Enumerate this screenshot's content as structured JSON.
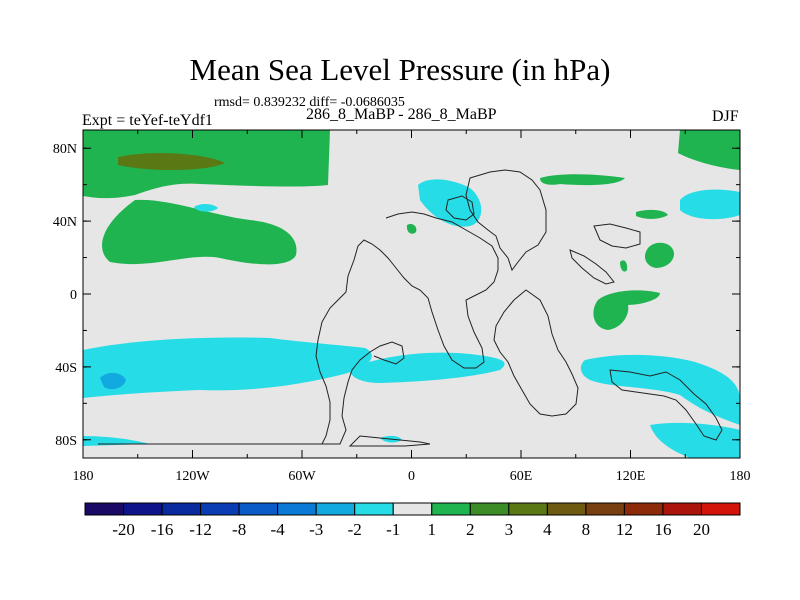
{
  "title": "Mean Sea Level Pressure (in hPa)",
  "stats": "rmsd= 0.839232 diff= -0.0686035",
  "left_label": "Expt = teYef-teYdf1",
  "center_label": "286_8_MaBP - 286_8_MaBP",
  "season": "DJF",
  "lat_ticks": [
    {
      "label": "80N",
      "lat": 80
    },
    {
      "label": "40N",
      "lat": 40
    },
    {
      "label": "0",
      "lat": 0
    },
    {
      "label": "40S",
      "lat": -40
    },
    {
      "label": "80S",
      "lat": -80
    }
  ],
  "lon_ticks": [
    {
      "label": "180",
      "lon": -180
    },
    {
      "label": "120W",
      "lon": -120
    },
    {
      "label": "60W",
      "lon": -60
    },
    {
      "label": "0",
      "lon": 0
    },
    {
      "label": "60E",
      "lon": 60
    },
    {
      "label": "120E",
      "lon": 120
    },
    {
      "label": "180",
      "lon": 180
    }
  ],
  "colorbar": {
    "colors": [
      "#1a0a66",
      "#10148a",
      "#0a2aa0",
      "#0a3cb4",
      "#0a5ac8",
      "#0a7ad6",
      "#12a8e0",
      "#26dce6",
      "#e6e6e6",
      "#20b450",
      "#3c8c28",
      "#5a7814",
      "#6e5a10",
      "#784010",
      "#8c2a0a",
      "#aa140a",
      "#d2140a"
    ],
    "labels": [
      "-20",
      "-16",
      "-12",
      "-8",
      "-4",
      "-3",
      "-2",
      "-1",
      "1",
      "2",
      "3",
      "4",
      "8",
      "12",
      "16",
      "20"
    ]
  },
  "legend_colors": {
    "neutral": "#e6e6e6",
    "positive_weak": "#20b450",
    "positive_mid": "#5a7814",
    "negative_weak": "#26dce6",
    "negative_mid": "#12a8e0"
  }
}
